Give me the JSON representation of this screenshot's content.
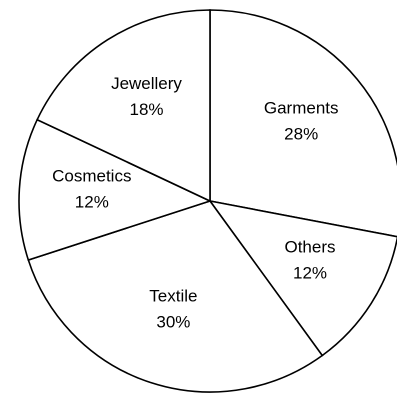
{
  "chart_data": {
    "type": "pie",
    "title": "",
    "slices": [
      {
        "name": "Garments",
        "value": 28,
        "label": "28%"
      },
      {
        "name": "Others",
        "value": 12,
        "label": "12%"
      },
      {
        "name": "Textile",
        "value": 30,
        "label": "30%"
      },
      {
        "name": "Cosmetics",
        "value": 12,
        "label": "12%"
      },
      {
        "name": "Jewellery",
        "value": 18,
        "label": "18%"
      }
    ],
    "start": "12 o'clock",
    "direction": "clockwise",
    "colors": {
      "fill": "#ffffff",
      "stroke": "#000000"
    }
  }
}
